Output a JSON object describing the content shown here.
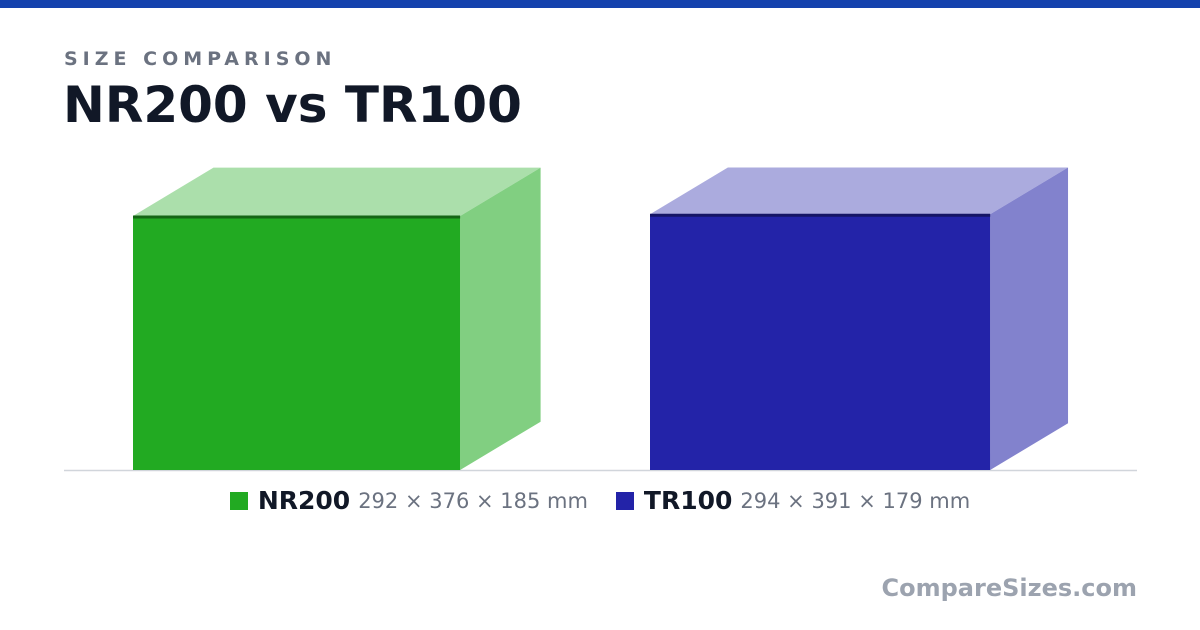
{
  "chart_data": {
    "type": "box3d",
    "kicker": "SIZE COMPARISON",
    "title": "NR200 vs TR100",
    "items": [
      {
        "name": "NR200",
        "color": "#22aa22",
        "dimensions": {
          "height": 292,
          "length": 376,
          "width": 185
        },
        "label": "292 × 376 × 185 mm"
      },
      {
        "name": "TR100",
        "color": "#2323a8",
        "dimensions": {
          "height": 294,
          "length": 391,
          "width": 179
        },
        "label": "294 × 391 × 179 mm"
      }
    ],
    "watermark": "CompareSizes.com"
  }
}
